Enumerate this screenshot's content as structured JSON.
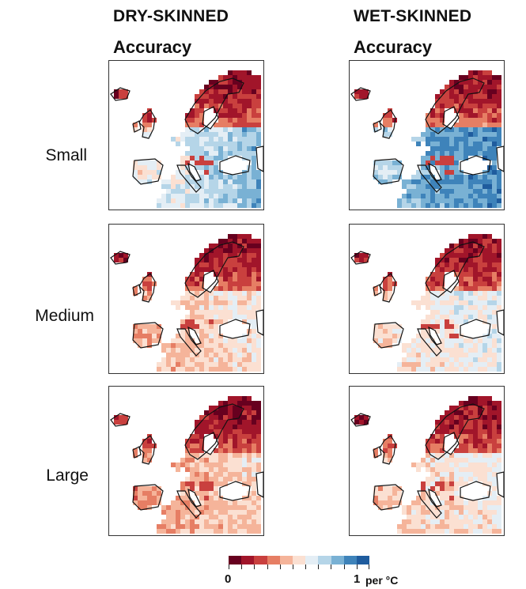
{
  "columns": [
    {
      "title": "DRY-SKINNED",
      "subtitle": "Accuracy"
    },
    {
      "title": "WET-SKINNED",
      "subtitle": "Accuracy"
    }
  ],
  "rows": [
    "Small",
    "Medium",
    "Large"
  ],
  "colorbar": {
    "min_label": "0",
    "max_label": "1",
    "unit": "per °C",
    "colors": [
      "#67001f",
      "#a1152a",
      "#c9403e",
      "#e67e64",
      "#f5b49a",
      "#fbe0d2",
      "#e4eef5",
      "#b5d5e8",
      "#79b1d4",
      "#3e83ba",
      "#1f5c9e"
    ]
  },
  "panels": [
    {
      "group": "dry-skinned",
      "size": "Small",
      "north": 0.08,
      "west": 0.45,
      "central": 0.62,
      "east": 0.8,
      "south": 0.72
    },
    {
      "group": "wet-skinned",
      "size": "Small",
      "north": 0.1,
      "west": 0.55,
      "central": 0.82,
      "east": 0.9,
      "south": 0.85
    },
    {
      "group": "dry-skinned",
      "size": "Medium",
      "north": 0.06,
      "west": 0.35,
      "central": 0.45,
      "east": 0.55,
      "south": 0.4
    },
    {
      "group": "wet-skinned",
      "size": "Medium",
      "north": 0.08,
      "west": 0.4,
      "central": 0.55,
      "east": 0.62,
      "south": 0.45
    },
    {
      "group": "dry-skinned",
      "size": "Large",
      "north": 0.05,
      "west": 0.3,
      "central": 0.4,
      "east": 0.5,
      "south": 0.35
    },
    {
      "group": "wet-skinned",
      "size": "Large",
      "north": 0.06,
      "west": 0.35,
      "central": 0.5,
      "east": 0.58,
      "south": 0.4
    }
  ]
}
